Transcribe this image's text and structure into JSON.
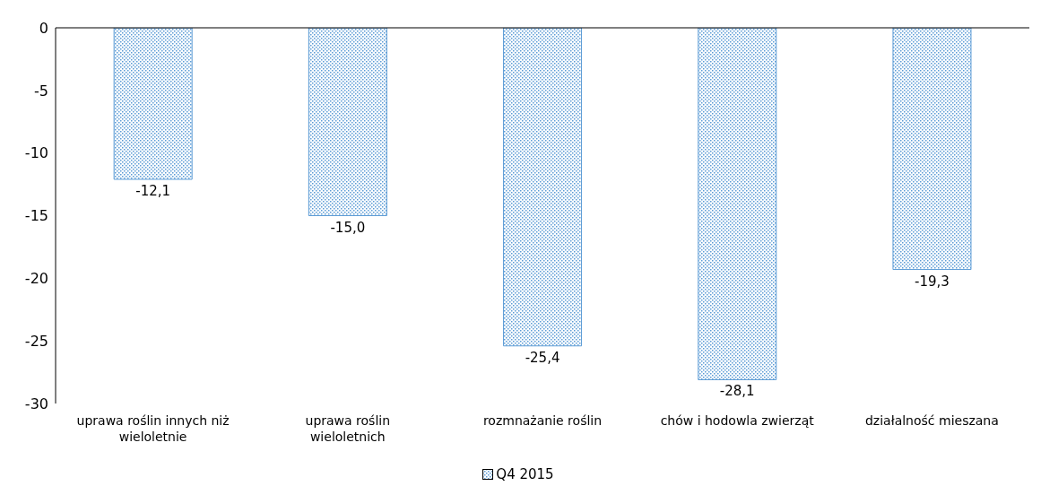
{
  "chart_data": {
    "type": "bar",
    "categories": [
      "uprawa roślin innych niż wieloletnie",
      "uprawa roślin wieloletnich",
      "rozmnażanie roślin",
      "chów i hodowla zwierząt",
      "działalność mieszana"
    ],
    "series": [
      {
        "name": "Q4 2015",
        "color": "#5b9bd5",
        "values": [
          -12.1,
          -15.0,
          -25.4,
          -28.1,
          -19.3
        ],
        "value_labels": [
          "-12,1",
          "-15,0",
          "-25,4",
          "-28,1",
          "-19,3"
        ]
      }
    ],
    "ylim": [
      -30,
      0
    ],
    "yticks": [
      0,
      -5,
      -10,
      -15,
      -20,
      -25,
      -30
    ],
    "grid": false,
    "legend": "bottom"
  }
}
